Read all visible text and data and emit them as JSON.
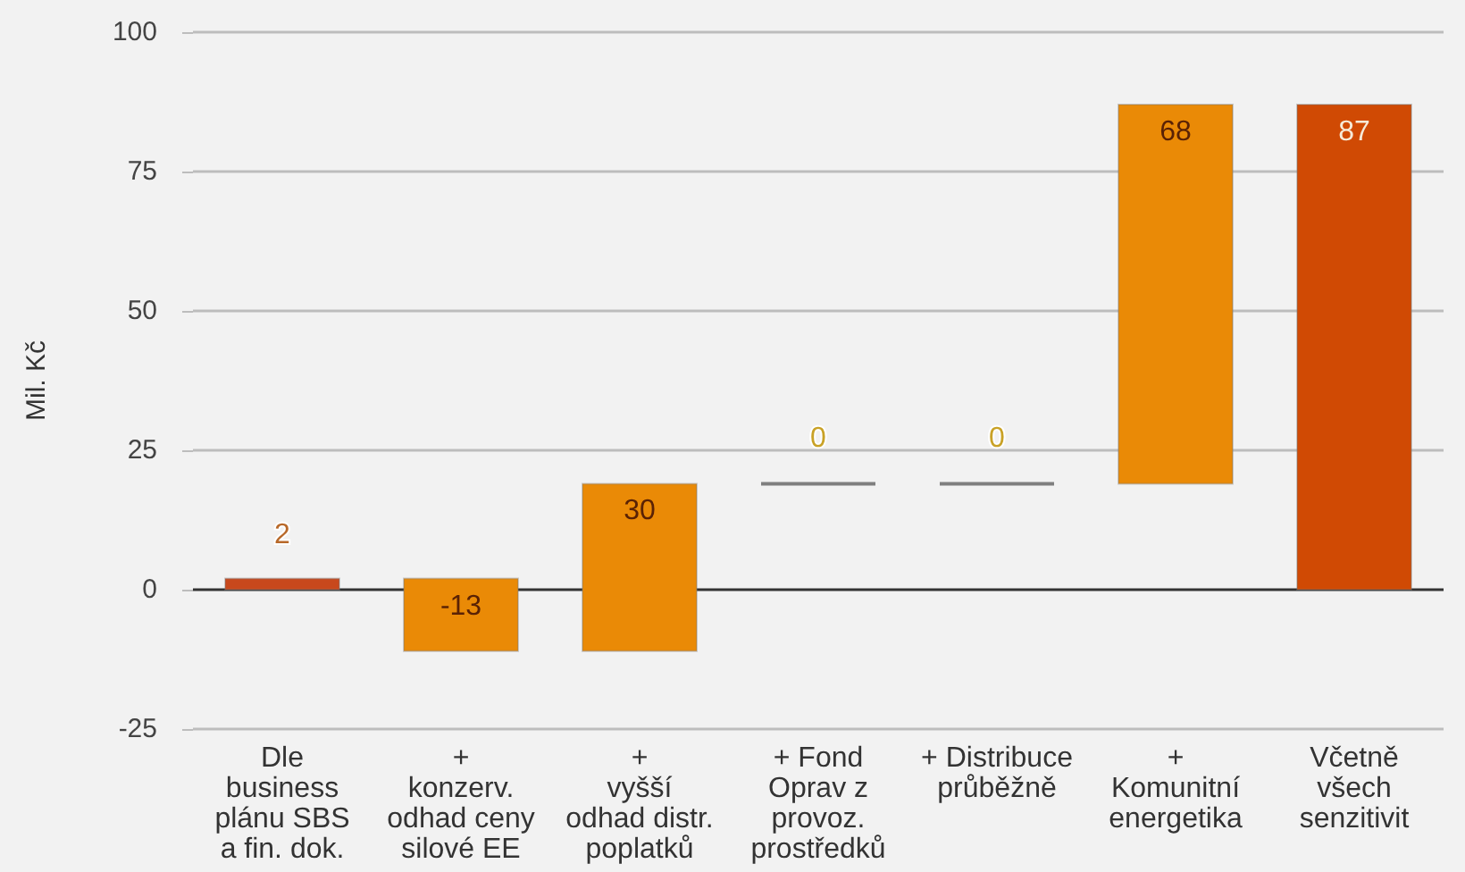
{
  "chart_data": {
    "type": "bar",
    "categories": [
      "Dle\nbusiness\nplánu SBS\na fin. dok.",
      "+\nkonzerv.\nodhad ceny\nsilové EE",
      "+\nvyšší\nodhad distr.\npoplatků",
      "+ Fond\nOprav z\nprovoz.\nprostředků",
      "+ Distribuce\nprůběžně",
      "+\nKomunitní\nenergetika",
      "Včetně\nvšech\nsenzitivit"
    ],
    "values": [
      2,
      -13,
      30,
      0,
      0,
      68,
      87
    ],
    "base": [
      0,
      2,
      -11,
      19,
      19,
      19,
      0
    ],
    "colors": [
      "#c8481c",
      "#ea8a06",
      "#ea8a06",
      "#7f7f7f",
      "#7f7f7f",
      "#ea8a06",
      "#d04a04"
    ],
    "ylabel": "Mil. Kč",
    "ylim": [
      -25,
      100
    ],
    "yticks": [
      -25,
      0,
      25,
      50,
      75,
      100
    ],
    "grid": "y",
    "data_labels": true
  }
}
